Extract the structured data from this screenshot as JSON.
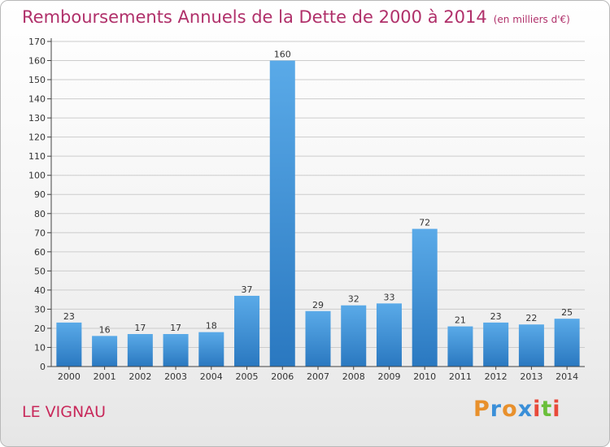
{
  "header": {
    "title": "Remboursements Annuels de la Dette de 2000 à 2014",
    "unit": "(en milliers d'€)"
  },
  "footer": {
    "commune": "LE VIGNAU",
    "logo_letters": [
      "P",
      "r",
      "o",
      "x",
      "i",
      "t",
      "i"
    ],
    "logo_colors": [
      "#e8902c",
      "#3a8fd8",
      "#e8902c",
      "#3a8fd8",
      "#e84a3a",
      "#6abf3a",
      "#e84a3a"
    ]
  },
  "colors": {
    "bar": "#3d8fd8",
    "axis": "#444444",
    "grid": "#cccccc",
    "title": "#b0306a"
  },
  "chart_data": {
    "type": "bar",
    "title": "Remboursements Annuels de la Dette de 2000 à 2014",
    "xlabel": "",
    "ylabel": "",
    "categories": [
      "2000",
      "2001",
      "2002",
      "2003",
      "2004",
      "2005",
      "2006",
      "2007",
      "2008",
      "2009",
      "2010",
      "2011",
      "2012",
      "2013",
      "2014"
    ],
    "values": [
      23,
      16,
      17,
      17,
      18,
      37,
      160,
      29,
      32,
      33,
      72,
      21,
      23,
      22,
      25
    ],
    "ylim": [
      0,
      170
    ],
    "yticks": [
      0,
      10,
      20,
      30,
      40,
      50,
      60,
      70,
      80,
      90,
      100,
      110,
      120,
      130,
      140,
      150,
      160,
      170
    ],
    "grid": true,
    "legend": "none"
  }
}
